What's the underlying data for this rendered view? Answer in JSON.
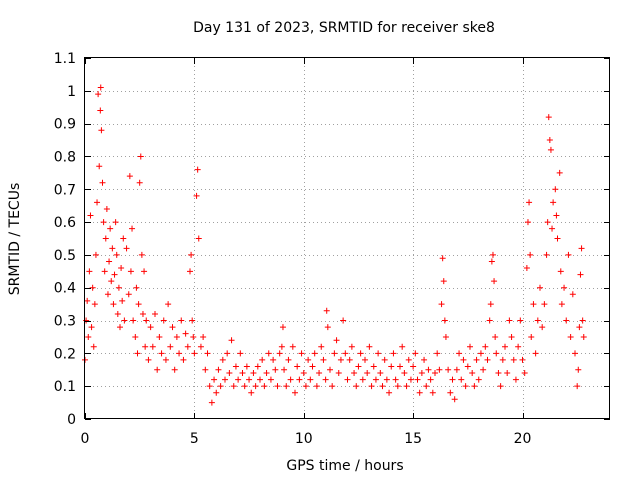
{
  "chart_data": {
    "type": "scatter",
    "title": "Day 131 of 2023, SRMTID for receiver ske8",
    "xlabel": "GPS time / hours",
    "ylabel": "SRMTID / TECUs",
    "xlim": [
      0,
      24
    ],
    "ylim": [
      0,
      1.1
    ],
    "x_ticks": [
      0,
      5,
      10,
      15,
      20
    ],
    "x_tick_labels": [
      "0",
      "5",
      "10",
      "15",
      "20"
    ],
    "y_ticks": [
      0,
      0.1,
      0.2,
      0.3,
      0.4,
      0.5,
      0.6,
      0.7,
      0.8,
      0.9,
      1,
      1.1
    ],
    "y_tick_labels": [
      "0",
      "0.1",
      "0.2",
      "0.3",
      "0.4",
      "0.5",
      "0.6",
      "0.7",
      "0.8",
      "0.9",
      "1",
      "1.1"
    ],
    "grid": true,
    "marker": "+",
    "color": "#ff0000",
    "series": [
      {
        "name": "SRMTID",
        "points": [
          [
            0.0,
            0.18
          ],
          [
            0.05,
            0.3
          ],
          [
            0.1,
            0.36
          ],
          [
            0.15,
            0.25
          ],
          [
            0.2,
            0.45
          ],
          [
            0.25,
            0.62
          ],
          [
            0.3,
            0.28
          ],
          [
            0.35,
            0.4
          ],
          [
            0.4,
            0.22
          ],
          [
            0.45,
            0.35
          ],
          [
            0.5,
            0.5
          ],
          [
            0.55,
            0.66
          ],
          [
            0.6,
            0.99
          ],
          [
            0.65,
            0.77
          ],
          [
            0.7,
            0.94
          ],
          [
            0.72,
            1.01
          ],
          [
            0.75,
            0.88
          ],
          [
            0.8,
            0.72
          ],
          [
            0.85,
            0.6
          ],
          [
            0.9,
            0.45
          ],
          [
            0.95,
            0.55
          ],
          [
            1.0,
            0.64
          ],
          [
            1.05,
            0.38
          ],
          [
            1.1,
            0.48
          ],
          [
            1.15,
            0.58
          ],
          [
            1.2,
            0.42
          ],
          [
            1.25,
            0.52
          ],
          [
            1.3,
            0.35
          ],
          [
            1.35,
            0.44
          ],
          [
            1.4,
            0.6
          ],
          [
            1.45,
            0.5
          ],
          [
            1.5,
            0.32
          ],
          [
            1.55,
            0.4
          ],
          [
            1.6,
            0.28
          ],
          [
            1.65,
            0.46
          ],
          [
            1.7,
            0.36
          ],
          [
            1.75,
            0.55
          ],
          [
            1.8,
            0.3
          ],
          [
            1.9,
            0.52
          ],
          [
            2.0,
            0.38
          ],
          [
            2.05,
            0.74
          ],
          [
            2.1,
            0.45
          ],
          [
            2.15,
            0.58
          ],
          [
            2.2,
            0.3
          ],
          [
            2.3,
            0.25
          ],
          [
            2.35,
            0.4
          ],
          [
            2.4,
            0.2
          ],
          [
            2.45,
            0.35
          ],
          [
            2.5,
            0.72
          ],
          [
            2.55,
            0.8
          ],
          [
            2.6,
            0.5
          ],
          [
            2.65,
            0.32
          ],
          [
            2.7,
            0.45
          ],
          [
            2.75,
            0.22
          ],
          [
            2.8,
            0.3
          ],
          [
            2.9,
            0.18
          ],
          [
            3.0,
            0.28
          ],
          [
            3.1,
            0.22
          ],
          [
            3.2,
            0.32
          ],
          [
            3.3,
            0.15
          ],
          [
            3.4,
            0.25
          ],
          [
            3.5,
            0.2
          ],
          [
            3.6,
            0.3
          ],
          [
            3.7,
            0.18
          ],
          [
            3.8,
            0.35
          ],
          [
            3.9,
            0.22
          ],
          [
            4.0,
            0.28
          ],
          [
            4.1,
            0.15
          ],
          [
            4.2,
            0.25
          ],
          [
            4.3,
            0.2
          ],
          [
            4.4,
            0.3
          ],
          [
            4.5,
            0.18
          ],
          [
            4.6,
            0.26
          ],
          [
            4.7,
            0.22
          ],
          [
            4.8,
            0.45
          ],
          [
            4.85,
            0.5
          ],
          [
            4.9,
            0.3
          ],
          [
            4.95,
            0.25
          ],
          [
            5.0,
            0.2
          ],
          [
            5.1,
            0.68
          ],
          [
            5.15,
            0.76
          ],
          [
            5.2,
            0.55
          ],
          [
            5.3,
            0.22
          ],
          [
            5.4,
            0.25
          ],
          [
            5.5,
            0.15
          ],
          [
            5.6,
            0.2
          ],
          [
            5.7,
            0.1
          ],
          [
            5.8,
            0.05
          ],
          [
            5.9,
            0.12
          ],
          [
            6.0,
            0.08
          ],
          [
            6.1,
            0.15
          ],
          [
            6.2,
            0.1
          ],
          [
            6.3,
            0.18
          ],
          [
            6.4,
            0.12
          ],
          [
            6.5,
            0.2
          ],
          [
            6.6,
            0.14
          ],
          [
            6.7,
            0.24
          ],
          [
            6.8,
            0.1
          ],
          [
            6.9,
            0.16
          ],
          [
            7.0,
            0.12
          ],
          [
            7.1,
            0.2
          ],
          [
            7.2,
            0.14
          ],
          [
            7.3,
            0.1
          ],
          [
            7.4,
            0.16
          ],
          [
            7.5,
            0.12
          ],
          [
            7.6,
            0.08
          ],
          [
            7.7,
            0.14
          ],
          [
            7.8,
            0.1
          ],
          [
            7.9,
            0.16
          ],
          [
            8.0,
            0.12
          ],
          [
            8.1,
            0.18
          ],
          [
            8.2,
            0.1
          ],
          [
            8.3,
            0.14
          ],
          [
            8.4,
            0.2
          ],
          [
            8.5,
            0.12
          ],
          [
            8.6,
            0.18
          ],
          [
            8.7,
            0.15
          ],
          [
            8.8,
            0.1
          ],
          [
            8.9,
            0.2
          ],
          [
            9.0,
            0.22
          ],
          [
            9.05,
            0.28
          ],
          [
            9.1,
            0.15
          ],
          [
            9.2,
            0.1
          ],
          [
            9.3,
            0.18
          ],
          [
            9.4,
            0.12
          ],
          [
            9.5,
            0.22
          ],
          [
            9.6,
            0.08
          ],
          [
            9.7,
            0.16
          ],
          [
            9.8,
            0.12
          ],
          [
            9.9,
            0.2
          ],
          [
            10.0,
            0.14
          ],
          [
            10.1,
            0.1
          ],
          [
            10.2,
            0.18
          ],
          [
            10.3,
            0.12
          ],
          [
            10.4,
            0.16
          ],
          [
            10.5,
            0.2
          ],
          [
            10.6,
            0.1
          ],
          [
            10.7,
            0.14
          ],
          [
            10.8,
            0.22
          ],
          [
            10.9,
            0.18
          ],
          [
            11.0,
            0.12
          ],
          [
            11.05,
            0.33
          ],
          [
            11.1,
            0.28
          ],
          [
            11.2,
            0.15
          ],
          [
            11.3,
            0.1
          ],
          [
            11.4,
            0.2
          ],
          [
            11.5,
            0.24
          ],
          [
            11.6,
            0.14
          ],
          [
            11.7,
            0.18
          ],
          [
            11.8,
            0.3
          ],
          [
            11.9,
            0.2
          ],
          [
            12.0,
            0.12
          ],
          [
            12.1,
            0.18
          ],
          [
            12.2,
            0.22
          ],
          [
            12.3,
            0.14
          ],
          [
            12.4,
            0.1
          ],
          [
            12.5,
            0.16
          ],
          [
            12.6,
            0.2
          ],
          [
            12.7,
            0.12
          ],
          [
            12.8,
            0.18
          ],
          [
            12.9,
            0.14
          ],
          [
            13.0,
            0.22
          ],
          [
            13.1,
            0.1
          ],
          [
            13.2,
            0.16
          ],
          [
            13.3,
            0.12
          ],
          [
            13.4,
            0.2
          ],
          [
            13.5,
            0.14
          ],
          [
            13.6,
            0.1
          ],
          [
            13.7,
            0.18
          ],
          [
            13.8,
            0.12
          ],
          [
            13.9,
            0.08
          ],
          [
            14.0,
            0.16
          ],
          [
            14.1,
            0.2
          ],
          [
            14.2,
            0.12
          ],
          [
            14.3,
            0.1
          ],
          [
            14.4,
            0.16
          ],
          [
            14.5,
            0.22
          ],
          [
            14.6,
            0.14
          ],
          [
            14.7,
            0.1
          ],
          [
            14.8,
            0.18
          ],
          [
            14.9,
            0.12
          ],
          [
            15.0,
            0.16
          ],
          [
            15.1,
            0.2
          ],
          [
            15.2,
            0.12
          ],
          [
            15.3,
            0.08
          ],
          [
            15.4,
            0.14
          ],
          [
            15.5,
            0.18
          ],
          [
            15.6,
            0.1
          ],
          [
            15.7,
            0.15
          ],
          [
            15.8,
            0.12
          ],
          [
            15.9,
            0.08
          ],
          [
            16.0,
            0.14
          ],
          [
            16.1,
            0.2
          ],
          [
            16.2,
            0.15
          ],
          [
            16.3,
            0.35
          ],
          [
            16.35,
            0.49
          ],
          [
            16.4,
            0.42
          ],
          [
            16.45,
            0.3
          ],
          [
            16.5,
            0.25
          ],
          [
            16.6,
            0.15
          ],
          [
            16.7,
            0.08
          ],
          [
            16.8,
            0.12
          ],
          [
            16.9,
            0.06
          ],
          [
            17.0,
            0.15
          ],
          [
            17.1,
            0.2
          ],
          [
            17.2,
            0.12
          ],
          [
            17.3,
            0.18
          ],
          [
            17.4,
            0.1
          ],
          [
            17.5,
            0.16
          ],
          [
            17.6,
            0.22
          ],
          [
            17.7,
            0.14
          ],
          [
            17.8,
            0.1
          ],
          [
            17.9,
            0.18
          ],
          [
            18.0,
            0.12
          ],
          [
            18.1,
            0.2
          ],
          [
            18.2,
            0.15
          ],
          [
            18.3,
            0.22
          ],
          [
            18.4,
            0.18
          ],
          [
            18.5,
            0.3
          ],
          [
            18.55,
            0.35
          ],
          [
            18.6,
            0.48
          ],
          [
            18.65,
            0.5
          ],
          [
            18.7,
            0.42
          ],
          [
            18.75,
            0.25
          ],
          [
            18.8,
            0.2
          ],
          [
            18.9,
            0.14
          ],
          [
            19.0,
            0.1
          ],
          [
            19.1,
            0.18
          ],
          [
            19.2,
            0.22
          ],
          [
            19.3,
            0.14
          ],
          [
            19.4,
            0.3
          ],
          [
            19.5,
            0.25
          ],
          [
            19.6,
            0.18
          ],
          [
            19.7,
            0.12
          ],
          [
            19.8,
            0.22
          ],
          [
            19.9,
            0.3
          ],
          [
            20.0,
            0.18
          ],
          [
            20.1,
            0.14
          ],
          [
            20.2,
            0.46
          ],
          [
            20.25,
            0.6
          ],
          [
            20.3,
            0.66
          ],
          [
            20.35,
            0.5
          ],
          [
            20.4,
            0.25
          ],
          [
            20.5,
            0.35
          ],
          [
            20.6,
            0.2
          ],
          [
            20.7,
            0.3
          ],
          [
            20.8,
            0.4
          ],
          [
            20.9,
            0.28
          ],
          [
            21.0,
            0.35
          ],
          [
            21.1,
            0.5
          ],
          [
            21.15,
            0.6
          ],
          [
            21.2,
            0.92
          ],
          [
            21.25,
            0.85
          ],
          [
            21.3,
            0.82
          ],
          [
            21.35,
            0.58
          ],
          [
            21.4,
            0.66
          ],
          [
            21.5,
            0.7
          ],
          [
            21.55,
            0.62
          ],
          [
            21.6,
            0.55
          ],
          [
            21.7,
            0.75
          ],
          [
            21.75,
            0.45
          ],
          [
            21.8,
            0.35
          ],
          [
            21.9,
            0.4
          ],
          [
            22.0,
            0.3
          ],
          [
            22.1,
            0.5
          ],
          [
            22.2,
            0.25
          ],
          [
            22.3,
            0.38
          ],
          [
            22.4,
            0.2
          ],
          [
            22.5,
            0.1
          ],
          [
            22.55,
            0.15
          ],
          [
            22.6,
            0.28
          ],
          [
            22.65,
            0.44
          ],
          [
            22.7,
            0.52
          ],
          [
            22.75,
            0.3
          ],
          [
            22.8,
            0.25
          ]
        ]
      }
    ]
  }
}
